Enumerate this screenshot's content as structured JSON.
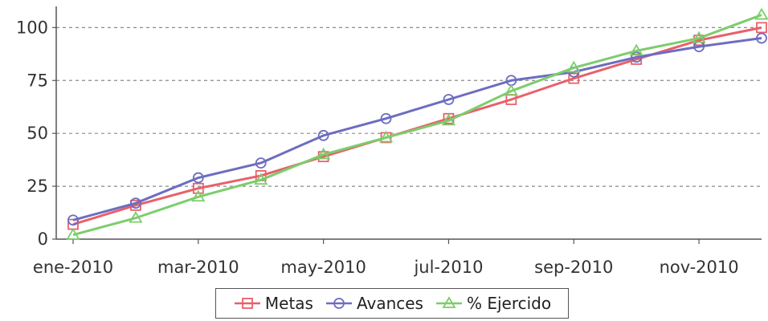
{
  "chart_data": {
    "type": "line",
    "title": "",
    "xlabel": "",
    "ylabel": "",
    "ylim": [
      0,
      110
    ],
    "yticks": [
      0,
      25,
      50,
      75,
      100
    ],
    "x": [
      "ene-2010",
      "feb-2010",
      "mar-2010",
      "abr-2010",
      "may-2010",
      "jun-2010",
      "jul-2010",
      "ago-2010",
      "sep-2010",
      "oct-2010",
      "nov-2010",
      "dic-2010"
    ],
    "xtick_labels": [
      {
        "index": 0,
        "label": "ene-2010"
      },
      {
        "index": 2,
        "label": "mar-2010"
      },
      {
        "index": 4,
        "label": "may-2010"
      },
      {
        "index": 6,
        "label": "jul-2010"
      },
      {
        "index": 8,
        "label": "sep-2010"
      },
      {
        "index": 10,
        "label": "nov-2010"
      }
    ],
    "grid": "horizontal-dashed",
    "legend_position": "bottom-center",
    "series": [
      {
        "name": "Metas",
        "color": "#e8606a",
        "marker": "square",
        "values": [
          7,
          16,
          24,
          30,
          39,
          48,
          57,
          66,
          76,
          85,
          94,
          100
        ]
      },
      {
        "name": "Avances",
        "color": "#6d6dc0",
        "marker": "circle",
        "values": [
          9,
          17,
          29,
          36,
          49,
          57,
          66,
          75,
          79,
          86,
          91,
          95
        ]
      },
      {
        "name": "% Ejercido",
        "color": "#7ccd6c",
        "marker": "triangle",
        "values": [
          2,
          10,
          20,
          28,
          40,
          48,
          56,
          70,
          81,
          89,
          95,
          106
        ]
      }
    ]
  }
}
